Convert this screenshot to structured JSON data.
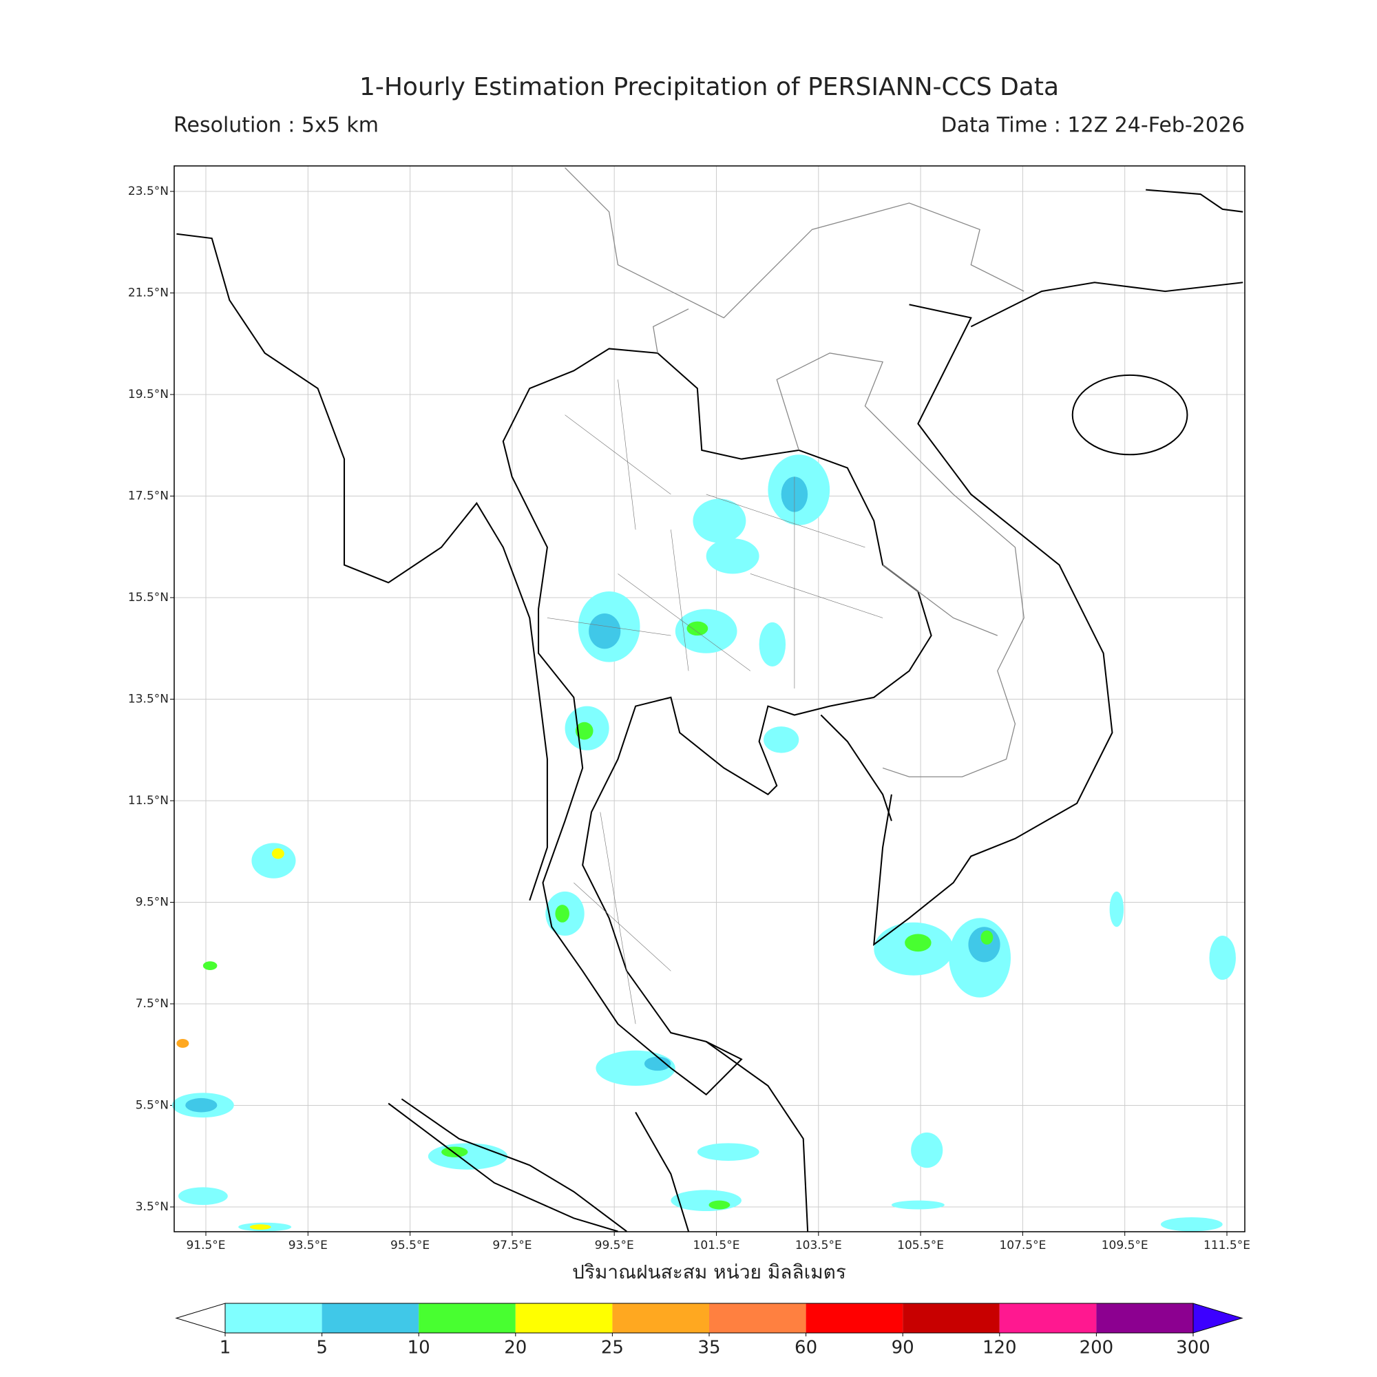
{
  "title": "1-Hourly Estimation Precipitation of PERSIANN-CCS Data",
  "subtitle_left": "Resolution : 5x5 km",
  "subtitle_right": "Data Time : 12Z 24-Feb-2026",
  "map": {
    "lon_labels": [
      "91.5°E",
      "93.5°E",
      "95.5°E",
      "97.5°E",
      "99.5°E",
      "101.5°E",
      "103.5°E",
      "105.5°E",
      "107.5°E",
      "109.5°E",
      "111.5°E"
    ],
    "lat_labels": [
      "23.5°N",
      "21.5°N",
      "19.5°N",
      "17.5°N",
      "15.5°N",
      "13.5°N",
      "11.5°N",
      "9.5°N",
      "7.5°N",
      "5.5°N",
      "3.5°N"
    ]
  },
  "colorbar": {
    "title": "ปริมาณฝนสะสม หน่วย มิลลิเมตร",
    "levels": [
      1,
      5,
      10,
      20,
      25,
      35,
      60,
      90,
      120,
      200,
      300
    ],
    "colors": [
      "#80ffff",
      "#40c8e8",
      "#48ff30",
      "#ffff00",
      "#ffa820",
      "#ff8040",
      "#ff0000",
      "#c80000",
      "#ff1890",
      "#8c0090"
    ],
    "under_color": "#ffffff",
    "over_color": "#3c00ff"
  }
}
